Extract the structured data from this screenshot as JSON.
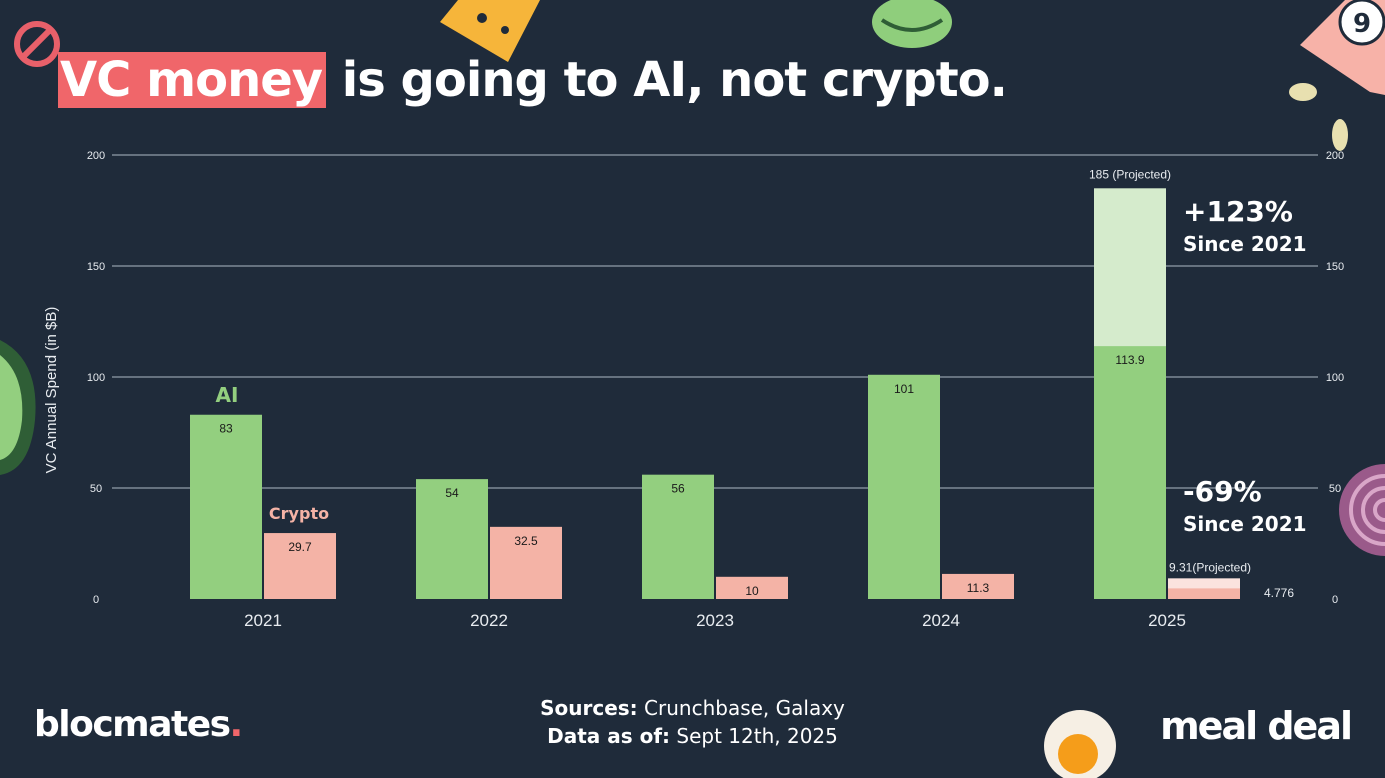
{
  "title": {
    "highlight": "VC money",
    "rest": " is going to AI, not crypto."
  },
  "colors": {
    "background": "#1f2b3a",
    "ai": "#93cf7f",
    "ai_projected": "#d5ebcc",
    "crypto": "#f4b3a6",
    "crypto_projected": "#fbe3de",
    "highlight": "#f0666a",
    "grid": "#aeb8c4"
  },
  "chart_data": {
    "type": "bar",
    "ylabel": "VC Annual Spend (in $B)",
    "ylim": [
      0,
      200
    ],
    "yticks": [
      0,
      50,
      100,
      150,
      200
    ],
    "categories": [
      "2021",
      "2022",
      "2023",
      "2024",
      "2025"
    ],
    "series": [
      {
        "name": "AI",
        "values": [
          83,
          54,
          56,
          101,
          113.9
        ],
        "labels": [
          "83",
          "54",
          "56",
          "101",
          "113.9"
        ]
      },
      {
        "name": "Crypto",
        "values": [
          29.7,
          32.5,
          10,
          11.3,
          4.776
        ],
        "labels": [
          "29.7",
          "32.5",
          "10",
          "11.3",
          "4.776"
        ]
      }
    ],
    "projected": [
      {
        "series": "AI",
        "category": "2025",
        "value": 185,
        "label": "185 (Projected)"
      },
      {
        "series": "Crypto",
        "category": "2025",
        "value": 9.31,
        "label": "9.31(Projected)"
      }
    ],
    "annotations": [
      {
        "value": "+123%",
        "text": "Since 2021"
      },
      {
        "value": "-69%",
        "text": "Since 2021"
      }
    ]
  },
  "footer": {
    "sources_label": "Sources:",
    "sources": " Crunchbase, Galaxy",
    "date_label": "Data as of:",
    "date": " Sept 12th, 2025"
  },
  "brands": {
    "left": "blocmates",
    "left_dot": ".",
    "right": "meal deal"
  },
  "icons": [
    "pill-icon",
    "cheese-icon",
    "lettuce-icon",
    "lottery-ticket-icon",
    "cucumber-icon",
    "onion-icon",
    "egg-icon"
  ]
}
